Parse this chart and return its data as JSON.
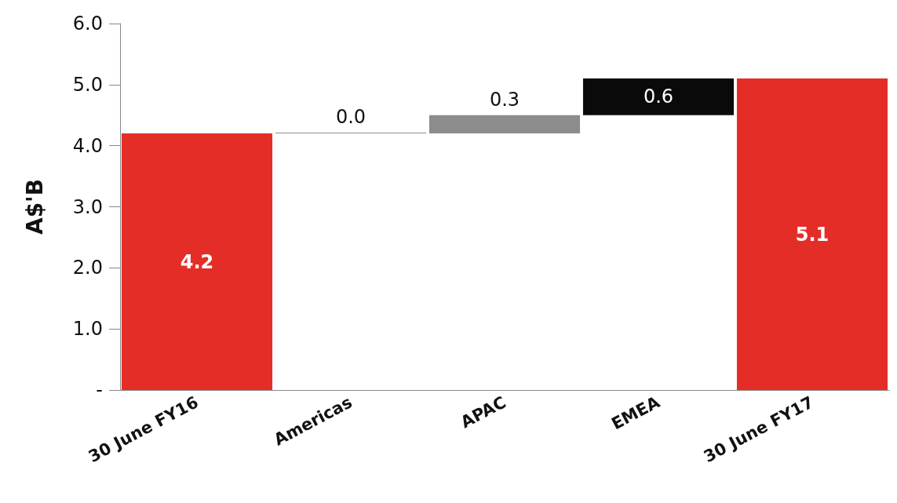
{
  "chart_data": {
    "type": "bar",
    "ylabel": "A$'B",
    "categories": [
      "30 June FY16",
      "Americas",
      "APAC",
      "EMEA",
      "30 June FY17"
    ],
    "values": [
      4.2,
      0.0,
      0.3,
      0.6,
      5.1
    ],
    "base": [
      0,
      4.2,
      4.2,
      4.5,
      0
    ],
    "colors": [
      "#e52d27",
      "#8c8c8c",
      "#8c8c8c",
      "#0a0a0a",
      "#e52d27"
    ],
    "value_labels": [
      "4.2",
      "0.0",
      "0.3",
      "0.6",
      "5.1"
    ],
    "ylim": [
      0,
      6
    ],
    "yticks": [
      {
        "value": 0,
        "label": "-"
      },
      {
        "value": 1,
        "label": "1.0"
      },
      {
        "value": 2,
        "label": "2.0"
      },
      {
        "value": 3,
        "label": "3.0"
      },
      {
        "value": 4,
        "label": "4.0"
      },
      {
        "value": 5,
        "label": "5.0"
      },
      {
        "value": 6,
        "label": "6.0"
      }
    ],
    "grid": false
  }
}
